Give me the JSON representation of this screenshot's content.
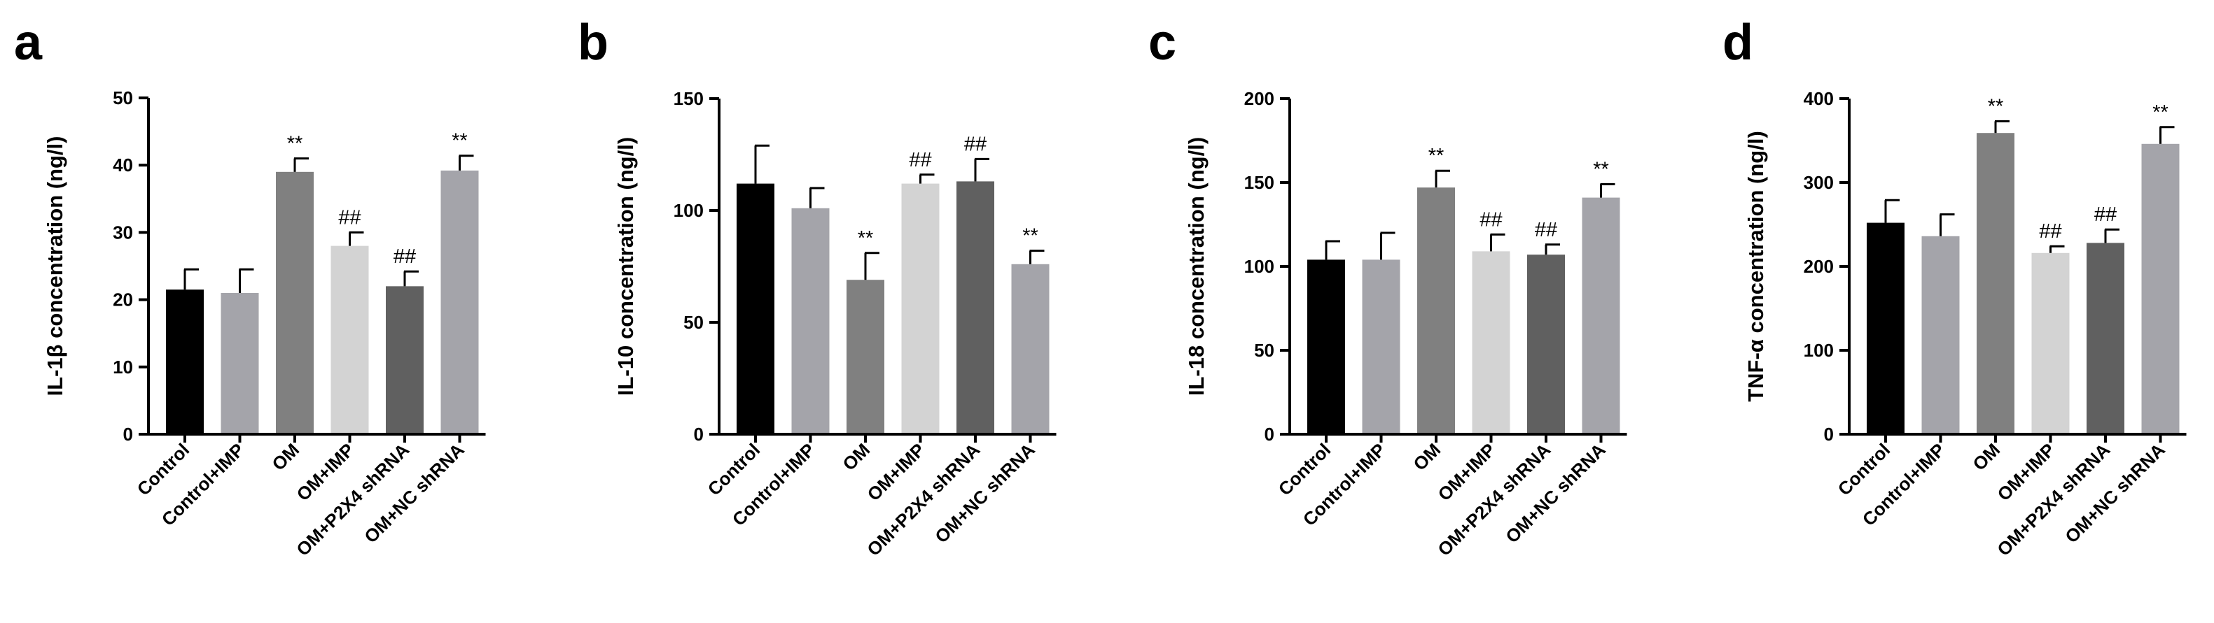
{
  "figure": {
    "background": "#ffffff"
  },
  "group_colors": [
    "#000000",
    "#a4a4aa",
    "#808080",
    "#d3d3d3",
    "#606060",
    "#a4a4aa"
  ],
  "chart_data": [
    {
      "panel": "a",
      "type": "bar",
      "title": "",
      "xlabel": "",
      "ylabel": "IL-1β concentration (ng/l)",
      "categories": [
        "Control",
        "Control+IMP",
        "OM",
        "OM+IMP",
        "OM+P2X4 shRNA",
        "OM+NC shRNA"
      ],
      "values": [
        21.5,
        21,
        39,
        28,
        22,
        39.2
      ],
      "errors": [
        3,
        3.5,
        2,
        2,
        2.2,
        2.2
      ],
      "annotations": [
        "",
        "",
        "**",
        "##",
        "##",
        "**"
      ],
      "ylim": [
        0,
        50
      ],
      "yticks": [
        0,
        10,
        20,
        30,
        40,
        50
      ],
      "tick_labels": [
        "0",
        "10",
        "20",
        "30",
        "40",
        "50"
      ]
    },
    {
      "panel": "b",
      "type": "bar",
      "title": "",
      "xlabel": "",
      "ylabel": "IL-10 concentration (ng/l)",
      "categories": [
        "Control",
        "Control+IMP",
        "OM",
        "OM+IMP",
        "OM+P2X4 shRNA",
        "OM+NC shRNA"
      ],
      "values": [
        112,
        101,
        69,
        112,
        113,
        76
      ],
      "errors": [
        17,
        9,
        12,
        4,
        10,
        6
      ],
      "annotations": [
        "",
        "",
        "**",
        "##",
        "##",
        "**"
      ],
      "ylim": [
        0,
        150
      ],
      "yticks": [
        0,
        50,
        100,
        150
      ],
      "tick_labels": [
        "0",
        "50",
        "100",
        "150"
      ]
    },
    {
      "panel": "c",
      "type": "bar",
      "title": "",
      "xlabel": "",
      "ylabel": "IL-18 concentration (ng/l)",
      "categories": [
        "Control",
        "Control+IMP",
        "OM",
        "OM+IMP",
        "OM+P2X4 shRNA",
        "OM+NC shRNA"
      ],
      "values": [
        104,
        104,
        147,
        109,
        107,
        141
      ],
      "errors": [
        11,
        16,
        10,
        10,
        6,
        8
      ],
      "annotations": [
        "",
        "",
        "**",
        "##",
        "##",
        "**"
      ],
      "ylim": [
        0,
        200
      ],
      "yticks": [
        0,
        50,
        100,
        150,
        200
      ],
      "tick_labels": [
        "0",
        "50",
        "100",
        "150",
        "200"
      ]
    },
    {
      "panel": "d",
      "type": "bar",
      "title": "",
      "xlabel": "",
      "ylabel": "TNF-α concentration (ng/l)",
      "categories": [
        "Control",
        "Control+IMP",
        "OM",
        "OM+IMP",
        "OM+P2X4 shRNA",
        "OM+NC shRNA"
      ],
      "values": [
        252,
        236,
        359,
        216,
        228,
        346
      ],
      "errors": [
        27,
        26,
        14,
        8,
        16,
        20
      ],
      "annotations": [
        "",
        "",
        "**",
        "##",
        "##",
        "**"
      ],
      "ylim": [
        0,
        400
      ],
      "yticks": [
        0,
        100,
        200,
        300,
        400
      ],
      "tick_labels": [
        "0",
        "100",
        "200",
        "300",
        "400"
      ]
    }
  ]
}
